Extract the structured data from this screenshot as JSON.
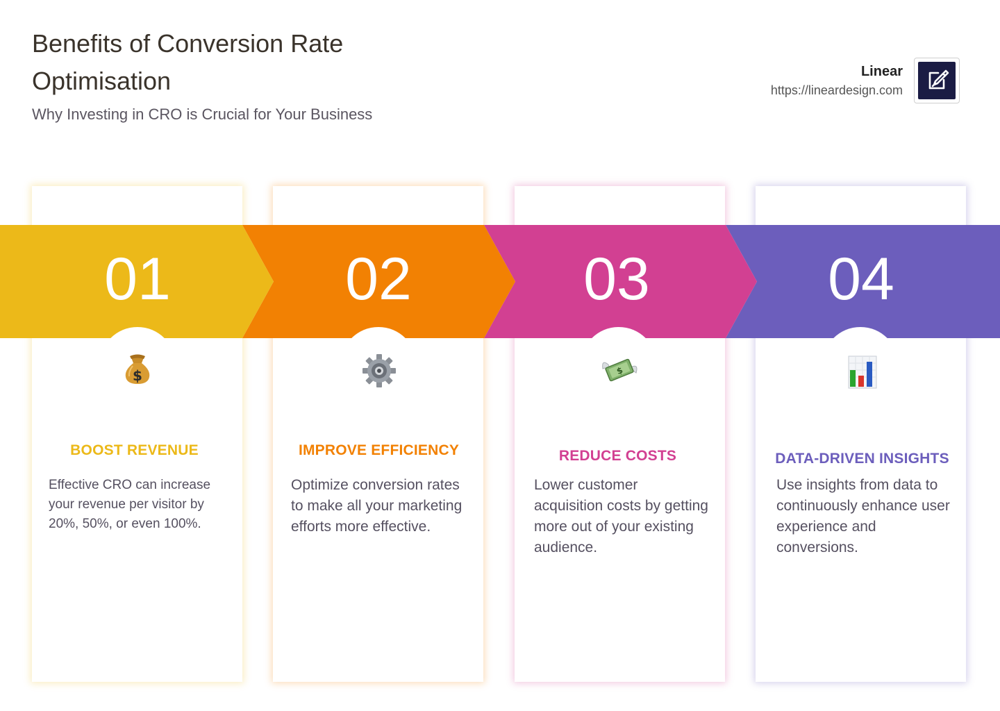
{
  "header": {
    "title": "Benefits of Conversion Rate Optimisation",
    "subtitle": "Why Investing in CRO is Crucial for Your Business"
  },
  "brand": {
    "name": "Linear",
    "url": "https://lineardesign.com",
    "logo_icon": "pencil-rocket-icon"
  },
  "colors": {
    "step1": "#ECB919",
    "step2": "#F28103",
    "step3": "#D24092",
    "step4": "#6C5EBC"
  },
  "steps": [
    {
      "number": "01",
      "icon": "money-bag-icon",
      "heading": "BOOST REVENUE",
      "text": "Effective CRO can increase your revenue per visitor by 20%, 50%, or even 100%."
    },
    {
      "number": "02",
      "icon": "gear-icon",
      "heading": "IMPROVE EFFICIENCY",
      "text": "Optimize conversion rates to make all your marketing efforts more effective."
    },
    {
      "number": "03",
      "icon": "money-with-wings-icon",
      "heading": "REDUCE COSTS",
      "text": "Lower customer acquisition costs by getting more out of your existing audience."
    },
    {
      "number": "04",
      "icon": "bar-chart-icon",
      "heading": "DATA-DRIVEN INSIGHTS",
      "text": "Use insights from data to continuously enhance user experience and conversions."
    }
  ]
}
